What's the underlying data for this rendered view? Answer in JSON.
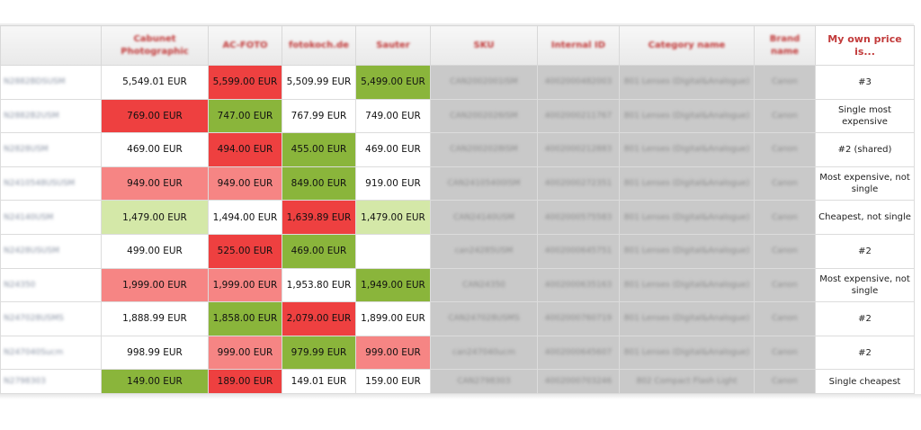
{
  "headers": {
    "col0": "",
    "col1": "Cabunet Photographic",
    "col2": "AC-FOTO",
    "col3": "fotokoch.de",
    "col4": "Sauter",
    "col5": "SKU",
    "col6": "Internal ID",
    "col7": "Category name",
    "col8": "Brand name",
    "col9": "My own price is..."
  },
  "colors": {
    "red": "#ee4040",
    "pink": "#f68584",
    "green": "#8ab53b",
    "light_green": "#d4e8a8",
    "grey": "#c9c9c9",
    "header_text": "#c23b3b"
  },
  "rows": [
    {
      "id": "N2882BDSUSM",
      "p1": "5,549.01 EUR",
      "p2": "5,599.00 EUR",
      "p3": "5,509.99 EUR",
      "p4": "5,499.00 EUR",
      "c1": "white",
      "c2": "red",
      "c3": "white",
      "c4": "green",
      "sku": "CAN2002001ISM",
      "internal": "4002000482003",
      "category": "801 Lenses (Digital&Analogue)",
      "brand": "Canon",
      "own": "#3"
    },
    {
      "id": "N2882B2USM",
      "p1": "769.00 EUR",
      "p2": "747.00 EUR",
      "p3": "767.99 EUR",
      "p4": "749.00 EUR",
      "c1": "red",
      "c2": "green",
      "c3": "white",
      "c4": "white",
      "sku": "CAN2002026ISM",
      "internal": "4002000211767",
      "category": "801 Lenses (Digital&Analogue)",
      "brand": "Canon",
      "own": "Single most expensive"
    },
    {
      "id": "N2828USM",
      "p1": "469.00 EUR",
      "p2": "494.00 EUR",
      "p3": "455.00 EUR",
      "p4": "469.00 EUR",
      "c1": "white",
      "c2": "red",
      "c3": "green",
      "c4": "white",
      "sku": "CAN2002028ISM",
      "internal": "4002000212883",
      "category": "801 Lenses (Digital&Analogue)",
      "brand": "Canon",
      "own": "#2 (shared)"
    },
    {
      "id": "N2410548USUSM",
      "p1": "949.00 EUR",
      "p2": "949.00 EUR",
      "p3": "849.00 EUR",
      "p4": "919.00 EUR",
      "c1": "pink",
      "c2": "pink",
      "c3": "green",
      "c4": "white",
      "sku": "CAN24105400ISM",
      "internal": "4002000272351",
      "category": "801 Lenses (Digital&Analogue)",
      "brand": "Canon",
      "own": "Most expensive, not single"
    },
    {
      "id": "N24140USM",
      "p1": "1,479.00 EUR",
      "p2": "1,494.00 EUR",
      "p3": "1,639.89 EUR",
      "p4": "1,479.00 EUR",
      "c1": "lgreen",
      "c2": "white",
      "c3": "red",
      "c4": "lgreen",
      "sku": "CAN24140USM",
      "internal": "4002000575583",
      "category": "801 Lenses (Digital&Analogue)",
      "brand": "Canon",
      "own": "Cheapest, not single"
    },
    {
      "id": "N2428USUSM",
      "p1": "499.00 EUR",
      "p2": "525.00 EUR",
      "p3": "469.00 EUR",
      "p4": "",
      "c1": "white",
      "c2": "red",
      "c3": "green",
      "c4": "white",
      "sku": "can24285USM",
      "internal": "4002000645751",
      "category": "801 Lenses (Digital&Analogue)",
      "brand": "Canon",
      "own": "#2"
    },
    {
      "id": "N24350",
      "p1": "1,999.00 EUR",
      "p2": "1,999.00 EUR",
      "p3": "1,953.80 EUR",
      "p4": "1,949.00 EUR",
      "c1": "pink",
      "c2": "pink",
      "c3": "white",
      "c4": "green",
      "sku": "CAN24350",
      "internal": "4002000635163",
      "category": "801 Lenses (Digital&Analogue)",
      "brand": "Canon",
      "own": "Most expensive, not single"
    },
    {
      "id": "N247028USMS",
      "p1": "1,888.99 EUR",
      "p2": "1,858.00 EUR",
      "p3": "2,079.00 EUR",
      "p4": "1,899.00 EUR",
      "c1": "white",
      "c2": "green",
      "c3": "red",
      "c4": "white",
      "sku": "CAN247028USMS",
      "internal": "4002000760719",
      "category": "801 Lenses (Digital&Analogue)",
      "brand": "Canon",
      "own": "#2"
    },
    {
      "id": "N247040Sucm",
      "p1": "998.99 EUR",
      "p2": "999.00 EUR",
      "p3": "979.99 EUR",
      "p4": "999.00 EUR",
      "c1": "white",
      "c2": "pink",
      "c3": "green",
      "c4": "pink",
      "sku": "can247040ucm",
      "internal": "4002000645607",
      "category": "801 Lenses (Digital&Analogue)",
      "brand": "Canon",
      "own": "#2"
    },
    {
      "id": "N2798303",
      "p1": "149.00 EUR",
      "p2": "189.00 EUR",
      "p3": "149.01 EUR",
      "p4": "159.00 EUR",
      "c1": "green",
      "c2": "red",
      "c3": "white",
      "c4": "white",
      "sku": "CAN2798303",
      "internal": "4002000703246",
      "category": "802 Compact Flash Light",
      "brand": "Canon",
      "own": "Single cheapest"
    }
  ]
}
